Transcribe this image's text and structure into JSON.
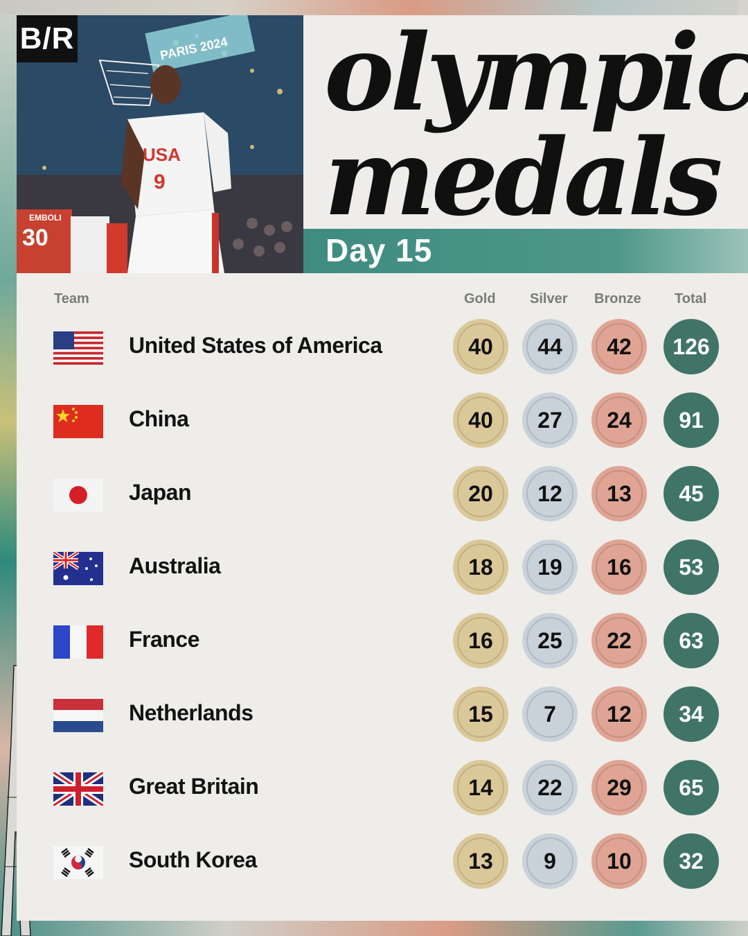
{
  "brand": "B/R",
  "title": {
    "line1": "olympic",
    "line2": "medals",
    "subtitle": "Day 15"
  },
  "photo": {
    "jersey_main": "USA",
    "number_main": "9",
    "player_left_name": "EMBOLI",
    "player_left_number": "30",
    "backboard_text": "PARIS 2024"
  },
  "headers": {
    "team": "Team",
    "gold": "Gold",
    "silver": "Silver",
    "bronze": "Bronze",
    "total": "Total"
  },
  "rows": [
    {
      "team": "United States of America",
      "flag": "usa-flag",
      "gold": "40",
      "silver": "44",
      "bronze": "42",
      "total": "126"
    },
    {
      "team": "China",
      "flag": "china-flag",
      "gold": "40",
      "silver": "27",
      "bronze": "24",
      "total": "91"
    },
    {
      "team": "Japan",
      "flag": "japan-flag",
      "gold": "20",
      "silver": "12",
      "bronze": "13",
      "total": "45"
    },
    {
      "team": "Australia",
      "flag": "australia-flag",
      "gold": "18",
      "silver": "19",
      "bronze": "16",
      "total": "53"
    },
    {
      "team": "France",
      "flag": "france-flag",
      "gold": "16",
      "silver": "25",
      "bronze": "22",
      "total": "63"
    },
    {
      "team": "Netherlands",
      "flag": "netherlands-flag",
      "gold": "15",
      "silver": "7",
      "bronze": "12",
      "total": "34"
    },
    {
      "team": "Great Britain",
      "flag": "great-britain-flag",
      "gold": "14",
      "silver": "22",
      "bronze": "29",
      "total": "65"
    },
    {
      "team": "South Korea",
      "flag": "south-korea-flag",
      "gold": "13",
      "silver": "9",
      "bronze": "10",
      "total": "32"
    }
  ],
  "colors": {
    "gold": "#dbc898",
    "silver": "#c9d2da",
    "bronze": "#dfa493",
    "total": "#3f7467",
    "accent": "#3f8b80"
  }
}
